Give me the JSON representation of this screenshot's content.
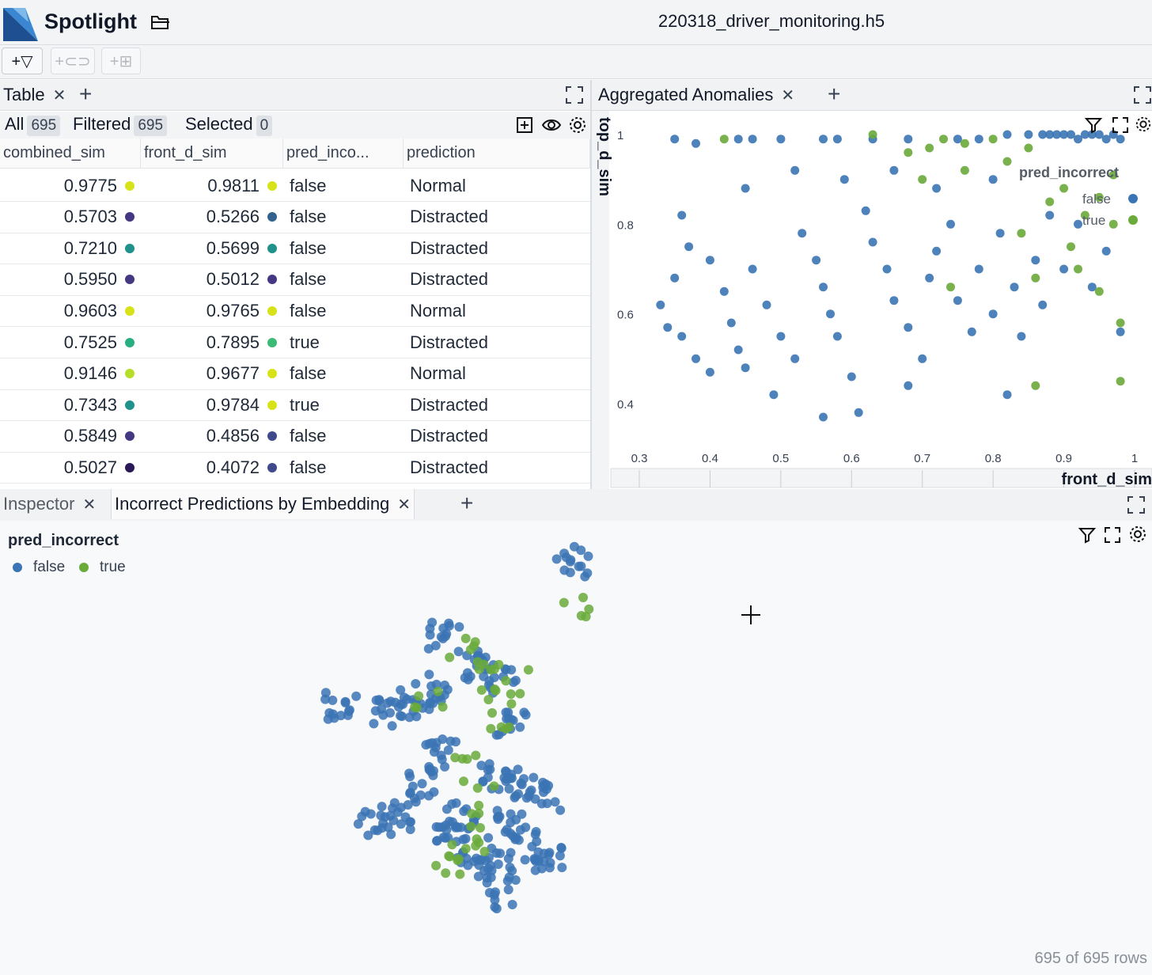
{
  "app": {
    "name": "Spotlight",
    "file": "220318_driver_monitoring.h5"
  },
  "toolbar": {
    "filter_btn": "+▽",
    "group_btn": "+⊂⊃",
    "compare_btn": "+⊞"
  },
  "top_left_tabs": [
    {
      "label": "Table"
    }
  ],
  "table": {
    "all_label": "All",
    "all_count": "695",
    "filtered_label": "Filtered",
    "filtered_count": "695",
    "selected_label": "Selected",
    "selected_count": "0",
    "columns": [
      "combined_sim",
      "front_d_sim",
      "pred_inco...",
      "prediction"
    ],
    "rows": [
      {
        "combined_sim": "0.9775",
        "c1": "#d8e219",
        "front_d_sim": "0.9811",
        "c2": "#d8e219",
        "pred_incorrect": "false",
        "prediction": "Normal"
      },
      {
        "combined_sim": "0.5703",
        "c1": "#453781",
        "front_d_sim": "0.5266",
        "c2": "#33638d",
        "pred_incorrect": "false",
        "prediction": "Distracted"
      },
      {
        "combined_sim": "0.7210",
        "c1": "#21918c",
        "front_d_sim": "0.5699",
        "c2": "#21918c",
        "pred_incorrect": "false",
        "prediction": "Distracted"
      },
      {
        "combined_sim": "0.5950",
        "c1": "#453781",
        "front_d_sim": "0.5012",
        "c2": "#453781",
        "pred_incorrect": "false",
        "prediction": "Distracted"
      },
      {
        "combined_sim": "0.9603",
        "c1": "#d8e219",
        "front_d_sim": "0.9765",
        "c2": "#d8e219",
        "pred_incorrect": "false",
        "prediction": "Normal"
      },
      {
        "combined_sim": "0.7525",
        "c1": "#28ae80",
        "front_d_sim": "0.7895",
        "c2": "#3bbb75",
        "pred_incorrect": "true",
        "prediction": "Distracted"
      },
      {
        "combined_sim": "0.9146",
        "c1": "#b5de2b",
        "front_d_sim": "0.9677",
        "c2": "#d8e219",
        "pred_incorrect": "false",
        "prediction": "Normal"
      },
      {
        "combined_sim": "0.7343",
        "c1": "#21918c",
        "front_d_sim": "0.9784",
        "c2": "#d8e219",
        "pred_incorrect": "true",
        "prediction": "Distracted"
      },
      {
        "combined_sim": "0.5849",
        "c1": "#453781",
        "front_d_sim": "0.4856",
        "c2": "#3e4a89",
        "pred_incorrect": "false",
        "prediction": "Distracted"
      },
      {
        "combined_sim": "0.5027",
        "c1": "#2a1858",
        "front_d_sim": "0.4072",
        "c2": "#3e4a89",
        "pred_incorrect": "false",
        "prediction": "Distracted"
      }
    ]
  },
  "scatter_panel": {
    "tab": "Aggregated Anomalies",
    "ylabel": "top_d_sim",
    "xlabel": "front_d_sim",
    "legend_title": "pred_incorrect",
    "legend": [
      "false",
      "true"
    ]
  },
  "bottom_tabs": [
    {
      "label": "Inspector"
    },
    {
      "label": "Incorrect Predictions by Embedding"
    }
  ],
  "embedding_panel": {
    "legend_title": "pred_incorrect",
    "legend": [
      {
        "label": "false",
        "color": "#3b74b4"
      },
      {
        "label": "true",
        "color": "#6aaa3a"
      }
    ],
    "rows_footer": "695 of 695 rows"
  },
  "colors": {
    "false": "#3b74b4",
    "true": "#6aaa3a"
  },
  "chart_data": [
    {
      "type": "scatter",
      "title": "Aggregated Anomalies",
      "xlabel": "front_d_sim",
      "ylabel": "top_d_sim",
      "xlim": [
        0.3,
        1.0
      ],
      "ylim": [
        0.35,
        1.02
      ],
      "xticks": [
        "0.3",
        "0.4",
        "0.5",
        "0.6",
        "0.7",
        "0.8",
        "0.9",
        "1"
      ],
      "yticks": [
        "0.4",
        "0.6",
        "0.8",
        "1"
      ],
      "legend_title": "pred_incorrect",
      "series": [
        {
          "name": "false",
          "color": "#3b74b4",
          "points": [
            [
              0.35,
              0.99
            ],
            [
              0.38,
              0.98
            ],
            [
              0.44,
              0.99
            ],
            [
              0.46,
              0.99
            ],
            [
              0.5,
              0.99
            ],
            [
              0.56,
              0.99
            ],
            [
              0.58,
              0.99
            ],
            [
              0.63,
              0.99
            ],
            [
              0.68,
              0.99
            ],
            [
              0.75,
              0.99
            ],
            [
              0.78,
              0.99
            ],
            [
              0.82,
              1.0
            ],
            [
              0.85,
              1.0
            ],
            [
              0.87,
              1.0
            ],
            [
              0.88,
              1.0
            ],
            [
              0.89,
              1.0
            ],
            [
              0.9,
              1.0
            ],
            [
              0.91,
              1.0
            ],
            [
              0.92,
              0.99
            ],
            [
              0.93,
              1.0
            ],
            [
              0.94,
              1.0
            ],
            [
              0.95,
              1.0
            ],
            [
              0.96,
              0.99
            ],
            [
              0.97,
              1.0
            ],
            [
              0.98,
              0.99
            ],
            [
              0.36,
              0.82
            ],
            [
              0.37,
              0.75
            ],
            [
              0.35,
              0.68
            ],
            [
              0.33,
              0.62
            ],
            [
              0.34,
              0.57
            ],
            [
              0.36,
              0.55
            ],
            [
              0.38,
              0.5
            ],
            [
              0.4,
              0.47
            ],
            [
              0.4,
              0.72
            ],
            [
              0.42,
              0.65
            ],
            [
              0.43,
              0.58
            ],
            [
              0.44,
              0.52
            ],
            [
              0.45,
              0.48
            ],
            [
              0.46,
              0.7
            ],
            [
              0.48,
              0.62
            ],
            [
              0.5,
              0.55
            ],
            [
              0.52,
              0.5
            ],
            [
              0.53,
              0.78
            ],
            [
              0.55,
              0.72
            ],
            [
              0.56,
              0.66
            ],
            [
              0.57,
              0.6
            ],
            [
              0.58,
              0.55
            ],
            [
              0.6,
              0.46
            ],
            [
              0.61,
              0.38
            ],
            [
              0.62,
              0.83
            ],
            [
              0.63,
              0.76
            ],
            [
              0.65,
              0.7
            ],
            [
              0.66,
              0.63
            ],
            [
              0.68,
              0.57
            ],
            [
              0.7,
              0.5
            ],
            [
              0.71,
              0.68
            ],
            [
              0.72,
              0.74
            ],
            [
              0.74,
              0.8
            ],
            [
              0.75,
              0.63
            ],
            [
              0.77,
              0.56
            ],
            [
              0.78,
              0.7
            ],
            [
              0.8,
              0.6
            ],
            [
              0.81,
              0.78
            ],
            [
              0.83,
              0.66
            ],
            [
              0.84,
              0.55
            ],
            [
              0.86,
              0.72
            ],
            [
              0.87,
              0.62
            ],
            [
              0.88,
              0.82
            ],
            [
              0.9,
              0.7
            ],
            [
              0.92,
              0.8
            ],
            [
              0.94,
              0.66
            ],
            [
              0.96,
              0.74
            ],
            [
              0.98,
              0.56
            ],
            [
              0.59,
              0.9
            ],
            [
              0.66,
              0.92
            ],
            [
              0.72,
              0.88
            ],
            [
              0.8,
              0.9
            ],
            [
              0.52,
              0.92
            ],
            [
              0.45,
              0.88
            ],
            [
              0.82,
              0.42
            ],
            [
              0.68,
              0.44
            ],
            [
              0.56,
              0.37
            ],
            [
              0.49,
              0.42
            ]
          ]
        },
        {
          "name": "true",
          "color": "#6aaa3a",
          "points": [
            [
              0.42,
              0.99
            ],
            [
              0.63,
              1.0
            ],
            [
              0.68,
              0.96
            ],
            [
              0.71,
              0.97
            ],
            [
              0.73,
              0.99
            ],
            [
              0.76,
              0.98
            ],
            [
              0.8,
              0.99
            ],
            [
              0.85,
              0.97
            ],
            [
              0.88,
              0.85
            ],
            [
              0.9,
              0.88
            ],
            [
              0.93,
              0.82
            ],
            [
              0.95,
              0.86
            ],
            [
              0.97,
              0.8
            ],
            [
              0.84,
              0.78
            ],
            [
              0.86,
              0.68
            ],
            [
              0.92,
              0.7
            ],
            [
              0.95,
              0.65
            ],
            [
              0.98,
              0.58
            ],
            [
              0.98,
              0.45
            ],
            [
              0.86,
              0.44
            ],
            [
              0.74,
              0.66
            ],
            [
              0.82,
              0.94
            ],
            [
              0.7,
              0.9
            ],
            [
              0.76,
              0.92
            ],
            [
              0.97,
              0.91
            ],
            [
              0.91,
              0.75
            ]
          ]
        }
      ]
    },
    {
      "type": "scatter",
      "title": "Incorrect Predictions by Embedding",
      "legend_title": "pred_incorrect",
      "series": [
        {
          "name": "false",
          "color": "#3b74b4",
          "cluster_centers": [
            [
              0.53,
              0.25
            ],
            [
              0.62,
              0.32
            ],
            [
              0.85,
              0.06
            ],
            [
              0.28,
              0.42
            ],
            [
              0.4,
              0.45
            ],
            [
              0.46,
              0.42
            ],
            [
              0.5,
              0.38
            ],
            [
              0.67,
              0.36
            ],
            [
              0.7,
              0.48
            ],
            [
              0.66,
              0.6
            ],
            [
              0.72,
              0.62
            ],
            [
              0.78,
              0.66
            ],
            [
              0.75,
              0.78
            ],
            [
              0.7,
              0.72
            ],
            [
              0.8,
              0.82
            ],
            [
              0.66,
              0.82
            ],
            [
              0.68,
              0.9
            ],
            [
              0.36,
              0.72
            ],
            [
              0.42,
              0.7
            ],
            [
              0.55,
              0.76
            ],
            [
              0.6,
              0.8
            ],
            [
              0.48,
              0.62
            ],
            [
              0.52,
              0.55
            ],
            [
              0.58,
              0.7
            ]
          ]
        },
        {
          "name": "true",
          "color": "#6aaa3a",
          "cluster_centers": [
            [
              0.86,
              0.18
            ],
            [
              0.58,
              0.28
            ],
            [
              0.62,
              0.34
            ],
            [
              0.7,
              0.36
            ],
            [
              0.66,
              0.4
            ],
            [
              0.67,
              0.48
            ],
            [
              0.6,
              0.58
            ],
            [
              0.62,
              0.66
            ],
            [
              0.55,
              0.8
            ],
            [
              0.57,
              0.82
            ],
            [
              0.62,
              0.76
            ],
            [
              0.5,
              0.42
            ]
          ]
        }
      ]
    }
  ]
}
